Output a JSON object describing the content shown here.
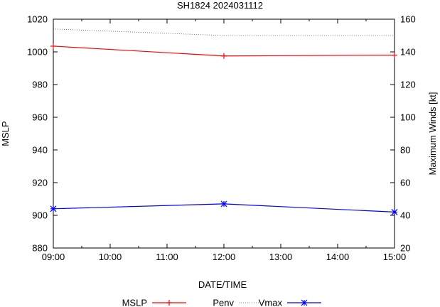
{
  "chart_data": {
    "type": "line",
    "title": "SH1824 2024031112",
    "xlabel": "DATE/TIME",
    "ylabel": "MSLP",
    "y2label": "Maximum Winds [kt]",
    "x_ticks": [
      "09:00",
      "10:00",
      "11:00",
      "12:00",
      "13:00",
      "14:00",
      "15:00"
    ],
    "ylim": [
      880,
      1020
    ],
    "y_ticks": [
      880,
      900,
      920,
      940,
      960,
      980,
      1000,
      1020
    ],
    "y2lim": [
      20,
      160
    ],
    "y2_ticks": [
      20,
      40,
      60,
      80,
      100,
      120,
      140,
      160
    ],
    "grid": false,
    "legend_position": "bottom",
    "series": [
      {
        "name": "MSLP",
        "axis": "left",
        "color": "#ff0000",
        "marker": "plus",
        "style": "solid",
        "x": [
          "09:00",
          "12:00",
          "15:00"
        ],
        "values": [
          1003.5,
          997.5,
          998
        ]
      },
      {
        "name": "Penv",
        "axis": "left",
        "color": "#555555",
        "marker": "none",
        "style": "dotted",
        "x": [
          "09:00",
          "12:00",
          "15:00"
        ],
        "values": [
          1014,
          1010,
          1010
        ]
      },
      {
        "name": "Vmax",
        "axis": "right",
        "color": "#0000ff",
        "marker": "star",
        "style": "solid",
        "x": [
          "09:00",
          "12:00",
          "15:00"
        ],
        "values": [
          44,
          47,
          42
        ]
      }
    ]
  }
}
